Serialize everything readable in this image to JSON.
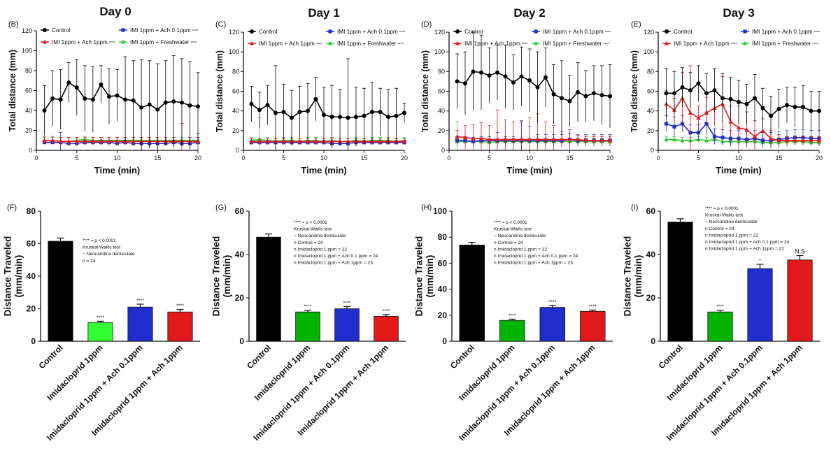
{
  "colors": {
    "control": "#000000",
    "ach1": "#e31a1c",
    "ach01": "#1f2ecc",
    "fresh": "#33cc33",
    "bar_imi": [
      "#33ff33",
      "#00b400",
      "#00b400",
      "#00b400"
    ]
  },
  "line_legend": {
    "control": "Control",
    "ach1": "IMI 1ppm + Ach 1ppm",
    "ach01": "IMI 1ppm + Ach 0.1ppm",
    "fresh": "IMI 1ppm +  Freshwater",
    "stars": "****"
  },
  "line_axes": {
    "ylabel": "Total distance (mm)",
    "xlabel": "Time (min)",
    "ylim": [
      0,
      120
    ],
    "yticks": [
      0,
      20,
      40,
      60,
      80,
      100,
      120
    ],
    "xlim": [
      0,
      20
    ],
    "xticks": [
      0,
      5,
      10,
      15,
      20
    ]
  },
  "bar_axes": {
    "ylabel_1": "Distance Traveled",
    "ylabel_2": "(mm/min)",
    "categories": [
      "Control",
      "Imidacloprid 1ppm",
      "Imidacloprid 1ppm + Ach 0.1ppm",
      "Imidacloprid 1ppm + Ach 1ppm"
    ]
  },
  "chart_data": [
    {
      "type": "line",
      "panel": "(B)",
      "title": "Day 0",
      "series": [
        {
          "name": "Control",
          "y": [
            40,
            52,
            51,
            68,
            63,
            52,
            51,
            66,
            54,
            55,
            51,
            50,
            43,
            46,
            41,
            48,
            49,
            48,
            45,
            44
          ],
          "err": [
            25,
            28,
            30,
            20,
            28,
            33,
            33,
            19,
            28,
            26,
            43,
            40,
            48,
            44,
            46,
            42,
            46,
            44,
            44,
            34
          ]
        },
        {
          "name": "IMI 1ppm + Ach 1ppm",
          "y": [
            10,
            10,
            9,
            9,
            9,
            9,
            9,
            9,
            9,
            9,
            9,
            9,
            9,
            9,
            9,
            9,
            9,
            9,
            9,
            9
          ],
          "err": [
            4,
            4,
            4,
            4,
            4,
            4,
            4,
            4,
            4,
            4,
            4,
            4,
            4,
            4,
            4,
            4,
            4,
            18,
            4,
            4
          ]
        },
        {
          "name": "IMI 1ppm + Ach 0.1ppm",
          "y": [
            8,
            8,
            8,
            7,
            7,
            8,
            8,
            8,
            8,
            7,
            8,
            7,
            7,
            7,
            7,
            7,
            8,
            7,
            7,
            8
          ],
          "err": [
            2,
            2,
            10,
            2,
            2,
            2,
            2,
            2,
            2,
            2,
            2,
            2,
            2,
            2,
            2,
            2,
            2,
            2,
            2,
            9
          ]
        },
        {
          "name": "IMI 1ppm +  Freshwater",
          "y": [
            10,
            10,
            9,
            9,
            10,
            11,
            10,
            10,
            10,
            10,
            10,
            10,
            10,
            10,
            10,
            10,
            10,
            10,
            10,
            10
          ],
          "err": [
            3,
            3,
            3,
            3,
            3,
            3,
            3,
            3,
            3,
            3,
            3,
            3,
            3,
            3,
            3,
            3,
            3,
            3,
            3,
            3
          ]
        }
      ]
    },
    {
      "type": "line",
      "panel": "(C)",
      "title": "Day 1",
      "series": [
        {
          "name": "Control",
          "y": [
            47,
            41,
            46,
            38,
            39,
            33,
            39,
            40,
            52,
            36,
            34,
            34,
            33,
            34,
            35,
            39,
            39,
            34,
            35,
            38
          ],
          "err": [
            18,
            18,
            20,
            48,
            28,
            28,
            26,
            28,
            22,
            28,
            32,
            28,
            60,
            30,
            28,
            30,
            24,
            28,
            28,
            10
          ]
        },
        {
          "name": "IMI 1ppm + Ach 1ppm",
          "y": [
            9,
            9,
            9,
            9,
            9,
            9,
            9,
            9,
            9,
            9,
            9,
            9,
            9,
            9,
            9,
            9,
            9,
            9,
            9,
            9
          ],
          "err": [
            3,
            3,
            3,
            3,
            3,
            3,
            3,
            3,
            3,
            3,
            3,
            3,
            3,
            3,
            3,
            3,
            3,
            3,
            3,
            3
          ]
        },
        {
          "name": "IMI 1ppm + Ach 0.1ppm",
          "y": [
            8,
            8,
            8,
            8,
            8,
            8,
            8,
            8,
            8,
            8,
            7,
            7,
            7,
            8,
            8,
            8,
            8,
            8,
            8,
            8
          ],
          "err": [
            2,
            2,
            2,
            2,
            2,
            2,
            2,
            2,
            2,
            2,
            2,
            2,
            2,
            2,
            2,
            2,
            2,
            2,
            2,
            2
          ]
        },
        {
          "name": "IMI 1ppm +  Freshwater",
          "y": [
            10,
            11,
            10,
            9,
            10,
            10,
            9,
            10,
            10,
            9,
            10,
            9,
            9,
            10,
            9,
            10,
            10,
            10,
            9,
            10
          ],
          "err": [
            3,
            22,
            3,
            3,
            3,
            3,
            3,
            3,
            3,
            3,
            3,
            3,
            3,
            3,
            3,
            3,
            3,
            3,
            3,
            3
          ]
        }
      ]
    },
    {
      "type": "line",
      "panel": "(D)",
      "title": "Day 2",
      "series": [
        {
          "name": "Control",
          "y": [
            70,
            68,
            80,
            79,
            76,
            79,
            75,
            69,
            75,
            71,
            64,
            74,
            57,
            53,
            50,
            59,
            55,
            58,
            56,
            55
          ],
          "err": [
            28,
            32,
            40,
            38,
            28,
            28,
            32,
            28,
            30,
            32,
            36,
            30,
            30,
            38,
            26,
            30,
            26,
            28,
            30,
            32
          ]
        },
        {
          "name": "IMI 1ppm + Ach 1ppm",
          "y": [
            14,
            13,
            12,
            12,
            11,
            11,
            11,
            11,
            11,
            11,
            11,
            11,
            11,
            11,
            11,
            11,
            10,
            10,
            10,
            10
          ],
          "err": [
            6,
            12,
            14,
            16,
            14,
            30,
            20,
            18,
            18,
            22,
            26,
            18,
            14,
            8,
            6,
            4,
            4,
            4,
            4,
            4
          ]
        },
        {
          "name": "IMI 1ppm + Ach 0.1ppm",
          "y": [
            10,
            10,
            9,
            10,
            10,
            10,
            10,
            10,
            10,
            10,
            10,
            10,
            10,
            10,
            11,
            10,
            10,
            10,
            10,
            10
          ],
          "err": [
            4,
            4,
            4,
            4,
            4,
            8,
            4,
            4,
            20,
            14,
            6,
            6,
            6,
            6,
            10,
            6,
            6,
            6,
            6,
            6
          ]
        },
        {
          "name": "IMI 1ppm +  Freshwater",
          "y": [
            9,
            9,
            9,
            9,
            8,
            9,
            9,
            9,
            9,
            9,
            9,
            9,
            9,
            9,
            9,
            9,
            9,
            9,
            9,
            9
          ],
          "err": [
            20,
            3,
            3,
            3,
            3,
            3,
            3,
            3,
            3,
            3,
            3,
            3,
            3,
            3,
            3,
            3,
            3,
            3,
            3,
            3
          ]
        }
      ]
    },
    {
      "type": "line",
      "panel": "(E)",
      "title": "Day 3",
      "series": [
        {
          "name": "Control",
          "y": [
            58,
            58,
            64,
            61,
            68,
            58,
            61,
            53,
            52,
            49,
            47,
            53,
            43,
            35,
            42,
            46,
            44,
            44,
            40,
            40
          ],
          "err": [
            25,
            22,
            20,
            18,
            18,
            20,
            22,
            25,
            22,
            22,
            20,
            24,
            20,
            20,
            20,
            18,
            20,
            22,
            20,
            20
          ]
        },
        {
          "name": "IMI 1ppm + Ach 1ppm",
          "y": [
            47,
            41,
            53,
            38,
            33,
            38,
            43,
            47,
            29,
            23,
            21,
            14,
            20,
            12,
            10,
            10,
            10,
            10,
            10,
            10
          ],
          "err": [
            14,
            12,
            26,
            48,
            12,
            16,
            18,
            28,
            16,
            22,
            18,
            16,
            12,
            8,
            6,
            4,
            4,
            4,
            4,
            4
          ]
        },
        {
          "name": "IMI 1ppm + Ach 0.1ppm",
          "y": [
            27,
            24,
            27,
            18,
            18,
            27,
            14,
            13,
            12,
            12,
            11,
            12,
            10,
            10,
            11,
            12,
            13,
            13,
            12,
            12
          ],
          "err": [
            8,
            10,
            8,
            8,
            8,
            12,
            8,
            8,
            8,
            8,
            8,
            8,
            8,
            8,
            8,
            8,
            8,
            8,
            8,
            8
          ]
        },
        {
          "name": "IMI 1ppm +  Freshwater",
          "y": [
            11,
            11,
            10,
            10,
            11,
            10,
            11,
            9,
            9,
            9,
            9,
            9,
            8,
            8,
            8,
            9,
            9,
            9,
            8,
            8
          ],
          "err": [
            3,
            3,
            3,
            3,
            3,
            3,
            3,
            3,
            3,
            3,
            3,
            3,
            3,
            3,
            3,
            3,
            3,
            3,
            3,
            3
          ]
        }
      ]
    },
    {
      "type": "bar",
      "panel": "(F)",
      "values": [
        61.5,
        11.5,
        21,
        18
      ],
      "errors": [
        2,
        0.8,
        1.8,
        1.5
      ],
      "sig": [
        "",
        "****",
        "****",
        "****"
      ],
      "ylim": [
        0,
        80
      ],
      "yticks": [
        0,
        20,
        40,
        60,
        80
      ],
      "stats": [
        "****     = p < 0.0001",
        "Kruskal-Wallis test",
        "~ Neocaridina denticulate",
        "n = 24"
      ]
    },
    {
      "type": "bar",
      "panel": "(G)",
      "values": [
        48,
        13.5,
        15,
        11.5
      ],
      "errors": [
        1.5,
        0.8,
        1,
        0.8
      ],
      "sig": [
        "",
        "****",
        "****",
        "****"
      ],
      "ylim": [
        0,
        60
      ],
      "yticks": [
        0,
        20,
        40,
        60
      ],
      "stats": [
        "****     = p < 0.0001",
        "Kruskal-Wallis test",
        "~ Neocaridina denticulate",
        "n Control                                    = 24",
        "n Imidacloprid 1 ppm                         = 22",
        "n Imidacloprid 1 ppm + Ach 0.1 ppm   = 24",
        "n Imidacloprid 1 ppm + Ach 1ppm      = 23"
      ]
    },
    {
      "type": "bar",
      "panel": "(H)",
      "values": [
        74,
        16,
        26,
        23
      ],
      "errors": [
        2,
        1,
        1.5,
        1
      ],
      "sig": [
        "",
        "****",
        "****",
        "****"
      ],
      "ylim": [
        0,
        100
      ],
      "yticks": [
        0,
        20,
        40,
        60,
        80,
        100
      ],
      "stats": [
        "****     = p < 0.0001",
        "Kruskal-Wallis test",
        "~ Neocaridina denticulate",
        "n Control                                    = 24",
        "n Imidacloprid 1 ppm                         = 22",
        "n Imidacloprid 1 ppm + Ach 0.1 ppm   = 24",
        "n Imidacloprid 1 ppm + Ach 1ppm      = 23"
      ]
    },
    {
      "type": "bar",
      "panel": "(I)",
      "values": [
        55,
        13.5,
        33.5,
        37.5
      ],
      "errors": [
        1.5,
        0.8,
        2,
        2
      ],
      "sig": [
        "",
        "****",
        "*",
        "N.S"
      ],
      "ylim": [
        0,
        60
      ],
      "yticks": [
        0,
        20,
        40,
        60
      ],
      "stats": [
        "****     = p < 0.0001",
        "Kruskal-Wallis test",
        "~ Neocaridina denticulate",
        "n Control                                    = 24",
        "n Imidacloprid 1 ppm                         = 22",
        "n Imidacloprid 1 ppm + Ach 0.1 ppm   = 24",
        "n Imidacloprid 1 ppm + Ach 1ppm      = 22"
      ]
    }
  ]
}
